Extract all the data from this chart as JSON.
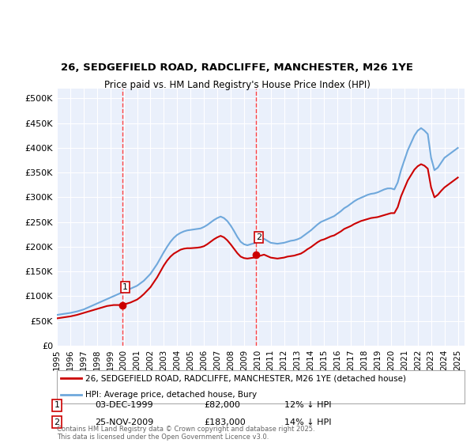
{
  "title_line1": "26, SEDGEFIELD ROAD, RADCLIFFE, MANCHESTER, M26 1YE",
  "title_line2": "Price paid vs. HM Land Registry's House Price Index (HPI)",
  "ylabel_ticks": [
    "£0",
    "£50K",
    "£100K",
    "£150K",
    "£200K",
    "£250K",
    "£300K",
    "£350K",
    "£400K",
    "£450K",
    "£500K"
  ],
  "ytick_values": [
    0,
    50000,
    100000,
    150000,
    200000,
    250000,
    300000,
    350000,
    400000,
    450000,
    500000
  ],
  "ylim": [
    0,
    520000
  ],
  "xlim_start": 1995.0,
  "xlim_end": 2025.5,
  "xtick_years": [
    1995,
    1996,
    1997,
    1998,
    1999,
    2000,
    2001,
    2002,
    2003,
    2004,
    2005,
    2006,
    2007,
    2008,
    2009,
    2010,
    2011,
    2012,
    2013,
    2014,
    2015,
    2016,
    2017,
    2018,
    2019,
    2020,
    2021,
    2022,
    2023,
    2024,
    2025
  ],
  "background_color": "#eaf0fb",
  "plot_bg_color": "#eaf0fb",
  "outer_bg_color": "#ffffff",
  "hpi_color": "#6fa8dc",
  "price_color": "#cc0000",
  "dashed_line_color": "#ff4444",
  "marker1_x": 1999.92,
  "marker1_y": 82000,
  "marker1_label": "1",
  "marker1_date": "03-DEC-1999",
  "marker1_price": "£82,000",
  "marker1_hpi": "12% ↓ HPI",
  "marker2_x": 2009.9,
  "marker2_y": 183000,
  "marker2_label": "2",
  "marker2_date": "25-NOV-2009",
  "marker2_price": "£183,000",
  "marker2_hpi": "14% ↓ HPI",
  "legend_label_price": "26, SEDGEFIELD ROAD, RADCLIFFE, MANCHESTER, M26 1YE (detached house)",
  "legend_label_hpi": "HPI: Average price, detached house, Bury",
  "footer_text": "Contains HM Land Registry data © Crown copyright and database right 2025.\nThis data is licensed under the Open Government Licence v3.0.",
  "hpi_data_x": [
    1995.0,
    1995.25,
    1995.5,
    1995.75,
    1996.0,
    1996.25,
    1996.5,
    1996.75,
    1997.0,
    1997.25,
    1997.5,
    1997.75,
    1998.0,
    1998.25,
    1998.5,
    1998.75,
    1999.0,
    1999.25,
    1999.5,
    1999.75,
    2000.0,
    2000.25,
    2000.5,
    2000.75,
    2001.0,
    2001.25,
    2001.5,
    2001.75,
    2002.0,
    2002.25,
    2002.5,
    2002.75,
    2003.0,
    2003.25,
    2003.5,
    2003.75,
    2004.0,
    2004.25,
    2004.5,
    2004.75,
    2005.0,
    2005.25,
    2005.5,
    2005.75,
    2006.0,
    2006.25,
    2006.5,
    2006.75,
    2007.0,
    2007.25,
    2007.5,
    2007.75,
    2008.0,
    2008.25,
    2008.5,
    2008.75,
    2009.0,
    2009.25,
    2009.5,
    2009.75,
    2010.0,
    2010.25,
    2010.5,
    2010.75,
    2011.0,
    2011.25,
    2011.5,
    2011.75,
    2012.0,
    2012.25,
    2012.5,
    2012.75,
    2013.0,
    2013.25,
    2013.5,
    2013.75,
    2014.0,
    2014.25,
    2014.5,
    2014.75,
    2015.0,
    2015.25,
    2015.5,
    2015.75,
    2016.0,
    2016.25,
    2016.5,
    2016.75,
    2017.0,
    2017.25,
    2017.5,
    2017.75,
    2018.0,
    2018.25,
    2018.5,
    2018.75,
    2019.0,
    2019.25,
    2019.5,
    2019.75,
    2020.0,
    2020.25,
    2020.5,
    2020.75,
    2021.0,
    2021.25,
    2021.5,
    2021.75,
    2022.0,
    2022.25,
    2022.5,
    2022.75,
    2023.0,
    2023.25,
    2023.5,
    2023.75,
    2024.0,
    2024.25,
    2024.5,
    2024.75,
    2025.0
  ],
  "hpi_data_y": [
    62000,
    63000,
    64000,
    65000,
    66000,
    67500,
    69000,
    71000,
    73000,
    76000,
    79000,
    82000,
    85000,
    88000,
    91000,
    94000,
    97000,
    100000,
    103000,
    106000,
    109000,
    112000,
    115000,
    118000,
    121000,
    126000,
    131000,
    138000,
    145000,
    155000,
    165000,
    177000,
    189000,
    200000,
    210000,
    218000,
    224000,
    228000,
    231000,
    233000,
    234000,
    235000,
    236000,
    237000,
    240000,
    244000,
    249000,
    254000,
    258000,
    261000,
    258000,
    252000,
    243000,
    232000,
    220000,
    210000,
    205000,
    203000,
    205000,
    207000,
    210000,
    213000,
    216000,
    212000,
    208000,
    207000,
    206000,
    207000,
    208000,
    210000,
    212000,
    213000,
    215000,
    218000,
    223000,
    228000,
    233000,
    239000,
    245000,
    250000,
    253000,
    256000,
    259000,
    262000,
    267000,
    272000,
    278000,
    282000,
    287000,
    292000,
    296000,
    299000,
    302000,
    305000,
    307000,
    308000,
    310000,
    313000,
    316000,
    318000,
    318000,
    316000,
    330000,
    355000,
    375000,
    395000,
    410000,
    425000,
    435000,
    440000,
    435000,
    428000,
    380000,
    355000,
    360000,
    370000,
    380000,
    385000,
    390000,
    395000,
    400000
  ],
  "price_data_x": [
    1995.0,
    1995.25,
    1995.5,
    1995.75,
    1996.0,
    1996.25,
    1996.5,
    1996.75,
    1997.0,
    1997.25,
    1997.5,
    1997.75,
    1998.0,
    1998.25,
    1998.5,
    1998.75,
    1999.0,
    1999.25,
    1999.5,
    1999.75,
    2000.0,
    2000.25,
    2000.5,
    2000.75,
    2001.0,
    2001.25,
    2001.5,
    2001.75,
    2002.0,
    2002.25,
    2002.5,
    2002.75,
    2003.0,
    2003.25,
    2003.5,
    2003.75,
    2004.0,
    2004.25,
    2004.5,
    2004.75,
    2005.0,
    2005.25,
    2005.5,
    2005.75,
    2006.0,
    2006.25,
    2006.5,
    2006.75,
    2007.0,
    2007.25,
    2007.5,
    2007.75,
    2008.0,
    2008.25,
    2008.5,
    2008.75,
    2009.0,
    2009.25,
    2009.5,
    2009.75,
    2010.0,
    2010.25,
    2010.5,
    2010.75,
    2011.0,
    2011.25,
    2011.5,
    2011.75,
    2012.0,
    2012.25,
    2012.5,
    2012.75,
    2013.0,
    2013.25,
    2013.5,
    2013.75,
    2014.0,
    2014.25,
    2014.5,
    2014.75,
    2015.0,
    2015.25,
    2015.5,
    2015.75,
    2016.0,
    2016.25,
    2016.5,
    2016.75,
    2017.0,
    2017.25,
    2017.5,
    2017.75,
    2018.0,
    2018.25,
    2018.5,
    2018.75,
    2019.0,
    2019.25,
    2019.5,
    2019.75,
    2020.0,
    2020.25,
    2020.5,
    2020.75,
    2021.0,
    2021.25,
    2021.5,
    2021.75,
    2022.0,
    2022.25,
    2022.5,
    2022.75,
    2023.0,
    2023.25,
    2023.5,
    2023.75,
    2024.0,
    2024.25,
    2024.5,
    2024.75,
    2025.0
  ],
  "price_data_y": [
    55000,
    56000,
    57000,
    58000,
    59000,
    60500,
    62000,
    64000,
    66000,
    68000,
    70000,
    72000,
    74000,
    76000,
    78000,
    80000,
    81000,
    82000,
    82000,
    82000,
    83000,
    85000,
    87000,
    90000,
    93000,
    98000,
    104000,
    111000,
    118000,
    128000,
    138000,
    150000,
    162000,
    172000,
    180000,
    186000,
    190000,
    194000,
    196000,
    197000,
    197000,
    197500,
    198000,
    199000,
    201000,
    205000,
    210000,
    215000,
    219000,
    222000,
    219000,
    213000,
    205000,
    196000,
    187000,
    180000,
    177000,
    176000,
    177000,
    178000,
    180000,
    182000,
    184000,
    181000,
    178000,
    177000,
    176000,
    177000,
    178000,
    180000,
    181000,
    182000,
    184000,
    186000,
    190000,
    195000,
    199000,
    204000,
    209000,
    213000,
    215000,
    218000,
    221000,
    223000,
    227000,
    231000,
    236000,
    239000,
    242000,
    246000,
    249000,
    252000,
    254000,
    256000,
    258000,
    259000,
    260000,
    262000,
    264000,
    266000,
    268000,
    268000,
    280000,
    302000,
    318000,
    334000,
    345000,
    356000,
    363000,
    367000,
    364000,
    358000,
    320000,
    300000,
    305000,
    313000,
    320000,
    325000,
    330000,
    335000,
    340000
  ]
}
